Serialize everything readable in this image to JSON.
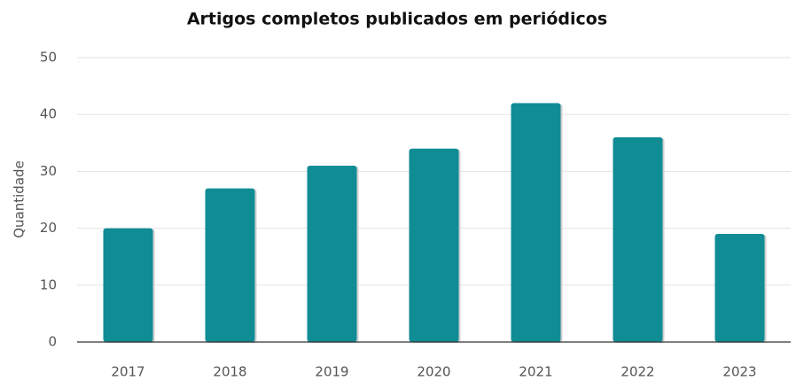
{
  "chart_data": {
    "type": "bar",
    "title": "Artigos completos publicados em periódicos",
    "y_label": "Quantidade",
    "categories": [
      "2017",
      "2018",
      "2019",
      "2020",
      "2021",
      "2022",
      "2023"
    ],
    "values": [
      20,
      27,
      31,
      34,
      42,
      36,
      19
    ],
    "color": "#108c95",
    "ylim": [
      0,
      50
    ],
    "yticks": [
      0,
      10,
      20,
      30,
      40,
      50
    ],
    "grid": true
  }
}
